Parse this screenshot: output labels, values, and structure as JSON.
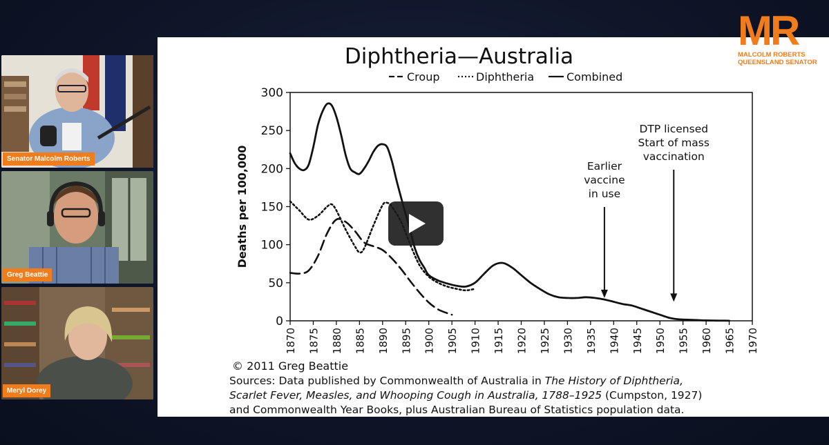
{
  "participants": [
    {
      "name": "Senator Malcolm Roberts"
    },
    {
      "name": "Greg Beattie"
    },
    {
      "name": "Meryl Dorey"
    }
  ],
  "logo": {
    "letters": "MR",
    "line1": "MALCOLM ROBERTS",
    "line2": "QUEENSLAND SENATOR",
    "color": "#f07c1c"
  },
  "colors": {
    "accent": "#f07c1c",
    "background": "#0f1629"
  },
  "chart_data": {
    "type": "line",
    "title": "Diphtheria—Australia",
    "ylabel": "Deaths per 100,000",
    "xlabel": "",
    "xlim": [
      1870,
      1970
    ],
    "ylim": [
      0,
      300
    ],
    "xticks": [
      1870,
      1875,
      1880,
      1885,
      1890,
      1895,
      1900,
      1905,
      1910,
      1915,
      1920,
      1925,
      1930,
      1935,
      1940,
      1945,
      1950,
      1955,
      1960,
      1965,
      1970
    ],
    "yticks": [
      0,
      50,
      100,
      150,
      200,
      250,
      300
    ],
    "legend": {
      "placement": "top",
      "items": [
        "Croup",
        "Diphtheria",
        "Combined"
      ]
    },
    "series": [
      {
        "name": "Croup",
        "style": "dashed",
        "x": [
          1870,
          1872,
          1874,
          1876,
          1878,
          1880,
          1882,
          1884,
          1886,
          1888,
          1890,
          1892,
          1894,
          1896,
          1898,
          1900,
          1902,
          1904,
          1905
        ],
        "y": [
          63,
          62,
          66,
          85,
          115,
          133,
          130,
          118,
          103,
          98,
          93,
          82,
          68,
          52,
          37,
          24,
          15,
          10,
          8
        ]
      },
      {
        "name": "Diphtheria",
        "style": "dotted",
        "x": [
          1870,
          1872,
          1874,
          1876,
          1878,
          1879,
          1880,
          1882,
          1884,
          1885,
          1886,
          1888,
          1890,
          1891,
          1892,
          1894,
          1896,
          1898,
          1900,
          1902,
          1904,
          1906,
          1908,
          1910
        ],
        "y": [
          157,
          145,
          133,
          138,
          150,
          153,
          145,
          120,
          98,
          90,
          95,
          125,
          152,
          155,
          150,
          130,
          100,
          73,
          58,
          50,
          45,
          42,
          40,
          42
        ]
      },
      {
        "name": "Combined",
        "style": "solid",
        "x": [
          1870,
          1871,
          1872,
          1873,
          1874,
          1875,
          1876,
          1877,
          1878,
          1879,
          1880,
          1881,
          1882,
          1883,
          1884,
          1885,
          1886,
          1887,
          1888,
          1889,
          1890,
          1891,
          1892,
          1893,
          1894,
          1895,
          1896,
          1897,
          1898,
          1899,
          1900,
          1902,
          1904,
          1906,
          1908,
          1910,
          1912,
          1914,
          1916,
          1918,
          1920,
          1922,
          1924,
          1926,
          1928,
          1930,
          1932,
          1934,
          1936,
          1938,
          1940,
          1942,
          1944,
          1946,
          1948,
          1950,
          1952,
          1954,
          1956,
          1958,
          1960,
          1962,
          1964,
          1965
        ],
        "y": [
          220,
          207,
          200,
          198,
          205,
          228,
          257,
          275,
          285,
          283,
          268,
          245,
          218,
          200,
          195,
          193,
          200,
          210,
          222,
          230,
          232,
          228,
          210,
          185,
          162,
          140,
          118,
          95,
          80,
          70,
          60,
          53,
          49,
          46,
          45,
          50,
          62,
          73,
          76,
          70,
          60,
          50,
          42,
          35,
          31,
          30,
          30,
          31,
          30,
          28,
          25,
          22,
          20,
          16,
          12,
          8,
          4,
          2,
          1.5,
          1,
          0.5,
          0.3,
          0.2,
          0.1
        ]
      }
    ],
    "annotations": [
      {
        "text": [
          "Earlier",
          "vaccine",
          "in use"
        ],
        "arrow_x": 1938,
        "arrow_y": 30
      },
      {
        "text": [
          "DTP licensed",
          "Start of mass",
          "vaccination"
        ],
        "arrow_x": 1953,
        "arrow_y": 25
      }
    ],
    "credit": "© 2011 Greg Beattie",
    "source": {
      "prefix": "Sources: Data published by Commonwealth of Australia in ",
      "italic": "The History of Diphtheria, Scarlet Fever, Measles, and Whooping Cough in Australia, 1788–1925",
      "suffix": " (Cumpston, 1927) and Commonwealth Year Books, plus Australian Bureau of Statistics population data."
    }
  }
}
